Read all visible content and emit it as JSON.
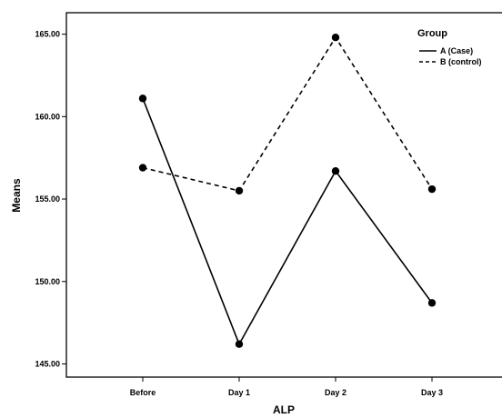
{
  "chart_data": {
    "type": "line",
    "title": "",
    "xlabel": "ALP",
    "ylabel": "Means",
    "categories": [
      "Before",
      "Day 1",
      "Day 2",
      "Day 3"
    ],
    "ylim": [
      144.2,
      166.3
    ],
    "yticks": [
      145.0,
      150.0,
      155.0,
      160.0,
      165.0
    ],
    "ytick_labels": [
      "145.00",
      "150.00",
      "155.00",
      "160.00",
      "165.00"
    ],
    "grid": false,
    "legend_position": "top-right",
    "legend_title": "Group",
    "series": [
      {
        "name": "A (Case)",
        "style": "solid",
        "color": "#000000",
        "values": [
          161.1,
          146.2,
          156.7,
          148.7
        ]
      },
      {
        "name": "B (control)",
        "style": "dashed",
        "color": "#000000",
        "values": [
          156.9,
          155.5,
          164.8,
          155.6
        ]
      }
    ]
  }
}
